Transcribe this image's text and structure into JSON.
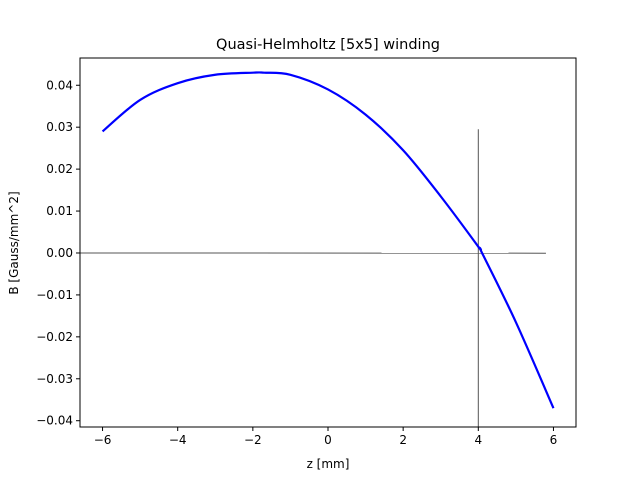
{
  "chart_data": {
    "type": "line",
    "title": "Quasi-Helmholtz [5x5] winding",
    "xlabel": "z [mm]",
    "ylabel": "B [Gauss/mm^2]",
    "xlim": [
      -6.6,
      6.6
    ],
    "ylim": [
      -0.0415,
      0.0465
    ],
    "xticks": [
      -6,
      -4,
      -2,
      0,
      2,
      4,
      6
    ],
    "xtick_labels": [
      "−6",
      "−4",
      "−2",
      "0",
      "2",
      "4",
      "6"
    ],
    "yticks": [
      0.04,
      0.03,
      0.02,
      0.01,
      0.0,
      -0.01,
      -0.02,
      -0.03,
      -0.04
    ],
    "ytick_labels": [
      "0.04",
      "0.03",
      "0.02",
      "0.01",
      "0.00",
      "−0.01",
      "−0.02",
      "−0.03",
      "−0.04"
    ],
    "grid": false,
    "legend": "none",
    "series": [
      {
        "color": "#0000ff",
        "x": [
          -6,
          -5,
          -4,
          -3,
          -2,
          -1.7,
          -1,
          0,
          1,
          2,
          3,
          4,
          4.1,
          5,
          6
        ],
        "y": [
          0.029,
          0.0365,
          0.0405,
          0.0425,
          0.043,
          0.043,
          0.0425,
          0.039,
          0.033,
          0.0245,
          0.0135,
          0.0015,
          0.0,
          -0.0165,
          -0.037
        ]
      }
    ],
    "reference_lines": [
      {
        "kind": "horizontal",
        "color": "#555555",
        "x": [
          -6.6,
          5.8
        ],
        "y": [
          0.0,
          -5e-05
        ]
      },
      {
        "kind": "vertical",
        "color": "#555555",
        "x": [
          4.0,
          4.0
        ],
        "y": [
          0.0295,
          -0.0415
        ]
      }
    ]
  }
}
